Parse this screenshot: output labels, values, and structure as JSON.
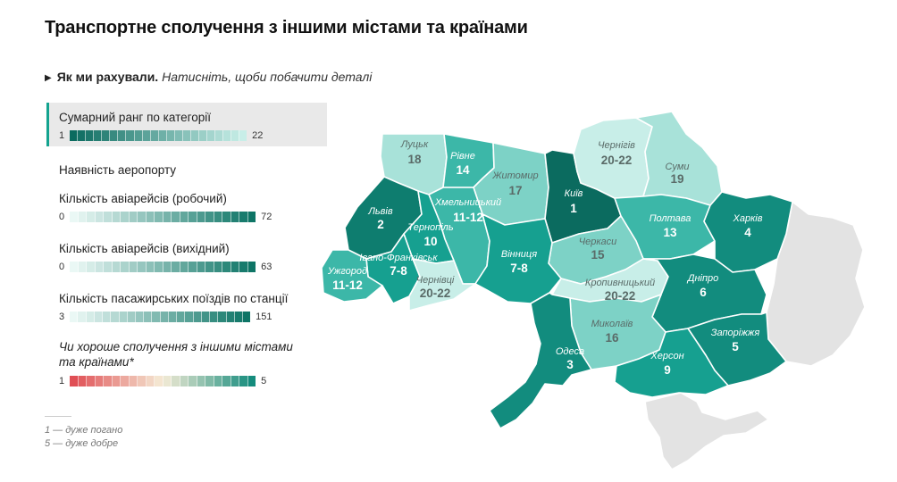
{
  "title": "Транспортне сполучення з іншими містами та країнами",
  "details": {
    "bold": "Як ми рахували.",
    "italic": "Натисніть, щоби побачити деталі"
  },
  "legend": [
    {
      "label": "Сумарний ранг по категорії",
      "min": "1",
      "max": "22",
      "active": true,
      "palette": "dark"
    },
    {
      "label": "Наявність аеропорту"
    },
    {
      "label": "Кількість авіарейсів (робочий)",
      "min": "0",
      "max": "72",
      "palette": "light"
    },
    {
      "label": "Кількість авіарейсів (вихідний)",
      "min": "0",
      "max": "63",
      "palette": "light"
    },
    {
      "label": "Кількість пасажирських поїздів по станції",
      "min": "3",
      "max": "151",
      "palette": "light"
    },
    {
      "label": "Чи хороше сполучення з іншими містами та країнами*",
      "min": "1",
      "max": "5",
      "palette": "diverging",
      "italic": true
    }
  ],
  "footnote": [
    "1 — дуже погано",
    "5 — дуже добре"
  ],
  "colors": {
    "rank_1": "#0b6b5f",
    "rank_2": "#0e7d6f",
    "rank_3_6": "#128c7e",
    "rank_7_10": "#16a090",
    "rank_11_14": "#3cb7a8",
    "rank_15_17": "#7dd2c6",
    "rank_18_19": "#a8e2d9",
    "rank_20_22": "#c8eee8",
    "neutral": "#e3e3e3",
    "accent": "#14a38f",
    "diverging_low": "#e04f55",
    "diverging_mid": "#f5ecd6",
    "diverging_high": "#158c7d"
  },
  "regions": [
    {
      "id": "lutsk",
      "name": "Луцьк",
      "value": "18",
      "rank": 18
    },
    {
      "id": "rivne",
      "name": "Рівне",
      "value": "14",
      "rank": 14
    },
    {
      "id": "zhytomyr",
      "name": "Житомир",
      "value": "17",
      "rank": 17
    },
    {
      "id": "kyiv",
      "name": "Київ",
      "value": "1",
      "rank": 1
    },
    {
      "id": "chernihiv",
      "name": "Чернігів",
      "value": "20-22",
      "rank": 21
    },
    {
      "id": "sumy",
      "name": "Суми",
      "value": "19",
      "rank": 19
    },
    {
      "id": "lviv",
      "name": "Львів",
      "value": "2",
      "rank": 2
    },
    {
      "id": "khmelnytskyi",
      "name": "Хмельницький",
      "value": "11-12",
      "rank": 11
    },
    {
      "id": "ternopil",
      "name": "Тернопіль",
      "value": "10",
      "rank": 10
    },
    {
      "id": "poltava",
      "name": "Полтава",
      "value": "13",
      "rank": 13
    },
    {
      "id": "kharkiv",
      "name": "Харків",
      "value": "4",
      "rank": 4
    },
    {
      "id": "cherkasy",
      "name": "Черкаси",
      "value": "15",
      "rank": 15
    },
    {
      "id": "vinnytsia",
      "name": "Вінниця",
      "value": "7-8",
      "rank": 7
    },
    {
      "id": "ivano",
      "name": "Івано-Франківськ",
      "value": "7-8",
      "rank": 7
    },
    {
      "id": "uzhhorod",
      "name": "Ужгород",
      "value": "11-12",
      "rank": 11
    },
    {
      "id": "chernivtsi",
      "name": "Чернівці",
      "value": "20-22",
      "rank": 21
    },
    {
      "id": "kropyvnytskyi",
      "name": "Кропивницький",
      "value": "20-22",
      "rank": 21
    },
    {
      "id": "dnipro",
      "name": "Дніпро",
      "value": "6",
      "rank": 6
    },
    {
      "id": "mykolaiv",
      "name": "Миколаїв",
      "value": "16",
      "rank": 16
    },
    {
      "id": "zaporizhzhia",
      "name": "Запоріжжя",
      "value": "5",
      "rank": 5
    },
    {
      "id": "odesa",
      "name": "Одеса",
      "value": "3",
      "rank": 3
    },
    {
      "id": "kherson",
      "name": "Херсон",
      "value": "9",
      "rank": 9
    }
  ]
}
